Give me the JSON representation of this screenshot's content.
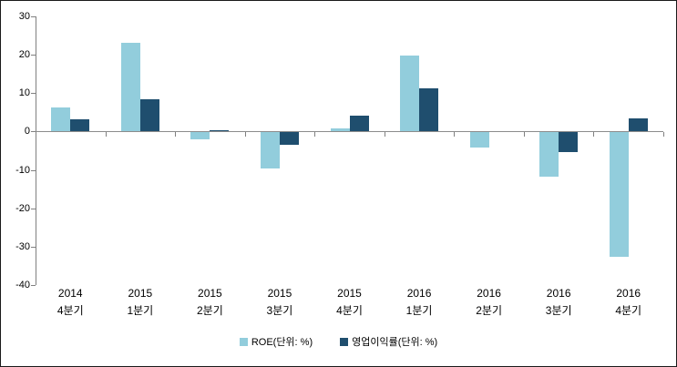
{
  "chart_data": {
    "type": "bar",
    "title": "",
    "xlabel": "",
    "ylabel": "",
    "categories": [
      "2014\n4분기",
      "2015\n1분기",
      "2015\n2분기",
      "2015\n3분기",
      "2015\n4분기",
      "2016\n1분기",
      "2016\n2분기",
      "2016\n3분기",
      "2016\n4분기"
    ],
    "series": [
      {
        "name": "ROE(단위: %)",
        "color": "#92CDDC",
        "values": [
          6.2,
          23.2,
          -1.8,
          -9.5,
          0.8,
          19.8,
          -4.0,
          -11.6,
          -32.3
        ]
      },
      {
        "name": "영업이익률(단위: %)",
        "color": "#1F4E6E",
        "values": [
          3.1,
          8.5,
          0.3,
          -3.3,
          4.2,
          11.3,
          0,
          -5.1,
          3.5
        ]
      }
    ],
    "ylim": [
      -40,
      30
    ],
    "yticks": [
      30,
      20,
      10,
      0,
      -10,
      -20,
      -30,
      -40
    ],
    "grid": false,
    "legend_position": "bottom",
    "axis_color": "#808080",
    "text_color": "#000000",
    "background_color": "#ffffff"
  }
}
